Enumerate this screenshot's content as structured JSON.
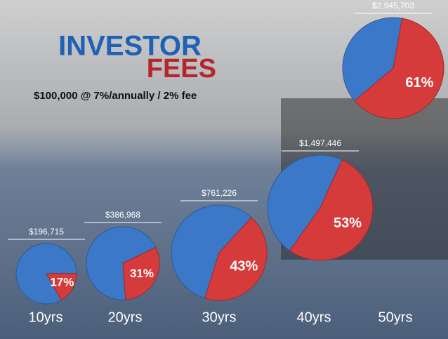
{
  "chart_data": {
    "type": "pie",
    "title_lines": [
      "INVESTOR",
      "FEES"
    ],
    "subtitle": "$100,000 @ 7%/annually / 2% fee",
    "categories": [
      "10yrs",
      "20yrs",
      "30yrs",
      "40yrs",
      "50yrs"
    ],
    "values": [
      17,
      31,
      43,
      53,
      61
    ],
    "value_labels": [
      "17%",
      "31%",
      "43%",
      "53%",
      "61%"
    ],
    "pie_labels": [
      "$196,715",
      "$386,968",
      "$761,226",
      "$1,497,446",
      "$2,945,703"
    ],
    "colors": [
      "#3b78c8",
      "#d63b3b"
    ]
  }
}
